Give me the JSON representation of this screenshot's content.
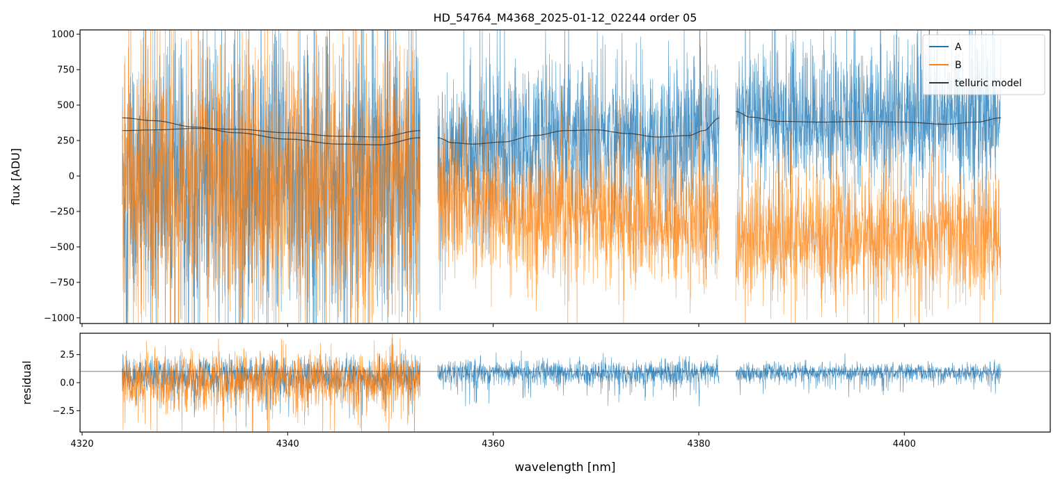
{
  "chart_data": [
    {
      "type": "line",
      "panel": "main",
      "title": "HD_54764_M4368_2025-01-12_02244  order 05",
      "xlabel": "",
      "ylabel": "flux [ADU]",
      "xlim": [
        4319.8,
        4414.2
      ],
      "ylim": [
        -1040,
        1030
      ],
      "x_ticks": [
        4320,
        4340,
        4360,
        4380,
        4400
      ],
      "y_ticks": [
        -1000,
        -750,
        -500,
        -250,
        0,
        250,
        500,
        750,
        1000
      ],
      "y_tick_labels": [
        "−1000",
        "−750",
        "−500",
        "−250",
        "0",
        "250",
        "500",
        "750",
        "1000"
      ],
      "legend": {
        "position": "top-right",
        "entries": [
          {
            "label": "A",
            "color": "#1f77b4"
          },
          {
            "label": "B",
            "color": "#ff7f0e"
          },
          {
            "label": "telluric model",
            "color": "#333333"
          }
        ]
      },
      "segments": [
        {
          "x_start": 4323.9,
          "x_end": 4352.9
        },
        {
          "x_start": 4354.6,
          "x_end": 4382.0
        },
        {
          "x_start": 4383.6,
          "x_end": 4409.4
        }
      ],
      "series": [
        {
          "name": "A",
          "color": "#1f77b4",
          "description": "noisy spectrum; baseline ~ -50 in first segment, ~ +250 to +450 later",
          "baseline_points": [
            [
              4324,
              -50
            ],
            [
              4340,
              -30
            ],
            [
              4352.9,
              20
            ],
            [
              4354.6,
              150
            ],
            [
              4365,
              250
            ],
            [
              4382,
              300
            ],
            [
              4383.6,
              420
            ],
            [
              4409.4,
              420
            ]
          ],
          "noise_amplitude": [
            [
              4324,
              650
            ],
            [
              4352.9,
              650
            ],
            [
              4354.6,
              380
            ],
            [
              4382,
              330
            ],
            [
              4383.6,
              320
            ],
            [
              4409.4,
              330
            ]
          ]
        },
        {
          "name": "B",
          "color": "#ff7f0e",
          "description": "noisy spectrum; baseline ~ 0 in first segment, ~ -250 to -450 later",
          "baseline_points": [
            [
              4324,
              0
            ],
            [
              4340,
              -60
            ],
            [
              4352.9,
              -80
            ],
            [
              4354.6,
              -150
            ],
            [
              4365,
              -250
            ],
            [
              4382,
              -330
            ],
            [
              4383.6,
              -430
            ],
            [
              4409.4,
              -430
            ]
          ],
          "noise_amplitude": [
            [
              4324,
              650
            ],
            [
              4352.9,
              650
            ],
            [
              4354.6,
              320
            ],
            [
              4382,
              300
            ],
            [
              4383.6,
              300
            ],
            [
              4409.4,
              300
            ]
          ]
        },
        {
          "name": "telluric model",
          "color": "#333333",
          "curves": [
            {
              "x": [
                4323.9,
                4327,
                4331,
                4335,
                4340,
                4345,
                4349,
                4352.9
              ],
              "y": [
                320,
                325,
                335,
                330,
                305,
                280,
                275,
                320
              ]
            },
            {
              "x": [
                4323.9,
                4327,
                4331,
                4335,
                4340,
                4345,
                4349,
                4352.9
              ],
              "y": [
                410,
                390,
                345,
                305,
                260,
                225,
                220,
                270
              ]
            },
            {
              "x": [
                4354.6,
                4356,
                4358,
                4361,
                4364,
                4367,
                4370,
                4373,
                4376,
                4379,
                4380.5,
                4382
              ],
              "y": [
                270,
                235,
                225,
                240,
                285,
                320,
                325,
                300,
                275,
                285,
                320,
                410
              ]
            },
            {
              "x": [
                4383.6,
                4385,
                4388,
                4392,
                4396,
                4400,
                4404,
                4407,
                4409.4
              ],
              "y": [
                455,
                415,
                385,
                380,
                385,
                380,
                365,
                380,
                410
              ]
            }
          ]
        }
      ]
    },
    {
      "type": "line",
      "panel": "residual",
      "title": "",
      "xlabel": "wavelength [nm]",
      "ylabel": "residual",
      "xlim": [
        4319.8,
        4414.2
      ],
      "ylim": [
        -4.4,
        4.4
      ],
      "x_ticks": [
        4320,
        4340,
        4360,
        4380,
        4400
      ],
      "x_tick_labels": [
        "4320",
        "4340",
        "4360",
        "4380",
        "4400"
      ],
      "y_ticks": [
        -2.5,
        0.0,
        2.5
      ],
      "y_tick_labels": [
        "−2.5",
        "0.0",
        "2.5"
      ],
      "reference_line": {
        "y": 1.0,
        "color": "#555555"
      },
      "series": [
        {
          "name": "A",
          "color": "#1f77b4",
          "description": "residual around 1.0",
          "segments": [
            {
              "x_start": 4323.9,
              "x_end": 4352.9,
              "center": 0.6,
              "amplitude": 1.6
            },
            {
              "x_start": 4354.6,
              "x_end": 4382.0,
              "center": 0.9,
              "amplitude": 1.1
            },
            {
              "x_start": 4383.6,
              "x_end": 4409.4,
              "center": 0.9,
              "amplitude": 0.8
            }
          ]
        },
        {
          "name": "B",
          "color": "#ff7f0e",
          "description": "residual present only in first segment, large scatter",
          "segments": [
            {
              "x_start": 4323.9,
              "x_end": 4352.9,
              "center": 0.2,
              "amplitude": 2.6
            }
          ]
        }
      ]
    }
  ]
}
